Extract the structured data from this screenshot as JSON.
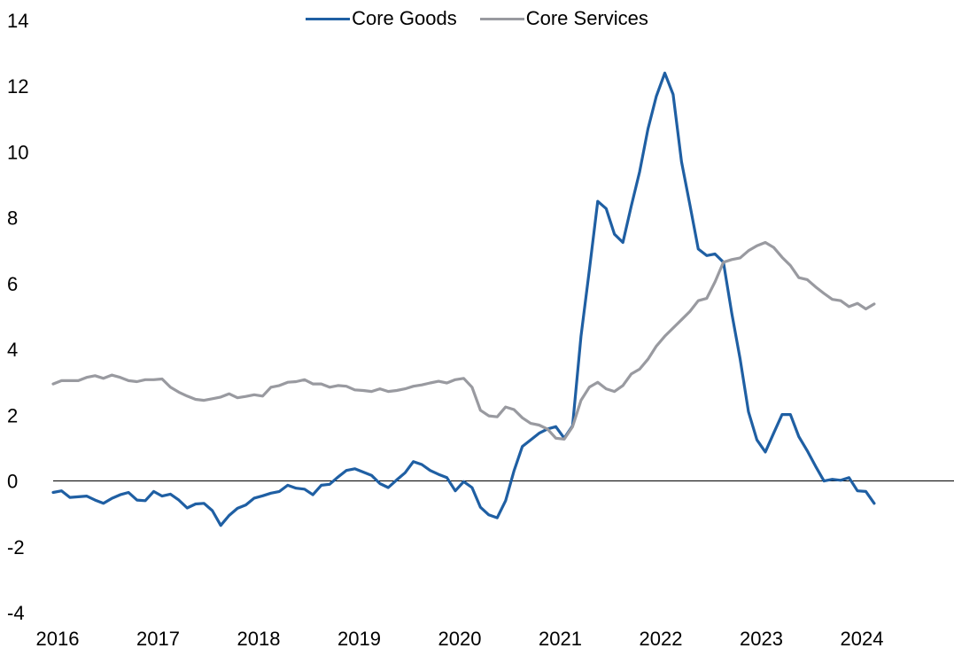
{
  "chart_data": {
    "type": "line",
    "title": "",
    "xlabel": "",
    "ylabel": "",
    "ylim": [
      -4,
      14
    ],
    "yticks": [
      -4,
      -2,
      0,
      2,
      4,
      6,
      8,
      10,
      12,
      14
    ],
    "ytick_labels": [
      "-4",
      "-2",
      "0",
      "2",
      "4",
      "6",
      "8",
      "10",
      "12",
      "14"
    ],
    "xlim": [
      "2016-01",
      "2024-12"
    ],
    "xtick_labels": [
      "2016",
      "2017",
      "2018",
      "2019",
      "2020",
      "2021",
      "2022",
      "2023",
      "2024"
    ],
    "legend": {
      "placement": "top-center"
    },
    "zero_line": true,
    "grid": false,
    "series": [
      {
        "name": "Core Goods",
        "color": "#1f5fa3",
        "points": [
          [
            "2016-01",
            -0.35
          ],
          [
            "2016-02",
            -0.3
          ],
          [
            "2016-03",
            -0.5
          ],
          [
            "2016-04",
            -0.48
          ],
          [
            "2016-05",
            -0.46
          ],
          [
            "2016-06",
            -0.58
          ],
          [
            "2016-07",
            -0.68
          ],
          [
            "2016-08",
            -0.53
          ],
          [
            "2016-09",
            -0.42
          ],
          [
            "2016-10",
            -0.35
          ],
          [
            "2016-11",
            -0.58
          ],
          [
            "2016-12",
            -0.6
          ],
          [
            "2017-01",
            -0.32
          ],
          [
            "2017-02",
            -0.46
          ],
          [
            "2017-03",
            -0.4
          ],
          [
            "2017-04",
            -0.58
          ],
          [
            "2017-05",
            -0.82
          ],
          [
            "2017-06",
            -0.7
          ],
          [
            "2017-07",
            -0.68
          ],
          [
            "2017-08",
            -0.9
          ],
          [
            "2017-09",
            -1.35
          ],
          [
            "2017-10",
            -1.05
          ],
          [
            "2017-11",
            -0.83
          ],
          [
            "2017-12",
            -0.73
          ],
          [
            "2018-01",
            -0.52
          ],
          [
            "2018-02",
            -0.45
          ],
          [
            "2018-03",
            -0.37
          ],
          [
            "2018-04",
            -0.32
          ],
          [
            "2018-05",
            -0.13
          ],
          [
            "2018-06",
            -0.22
          ],
          [
            "2018-07",
            -0.25
          ],
          [
            "2018-08",
            -0.42
          ],
          [
            "2018-09",
            -0.13
          ],
          [
            "2018-10",
            -0.1
          ],
          [
            "2018-11",
            0.12
          ],
          [
            "2018-12",
            0.32
          ],
          [
            "2019-01",
            0.37
          ],
          [
            "2019-02",
            0.27
          ],
          [
            "2019-03",
            0.17
          ],
          [
            "2019-04",
            -0.08
          ],
          [
            "2019-05",
            -0.2
          ],
          [
            "2019-06",
            0.03
          ],
          [
            "2019-07",
            0.25
          ],
          [
            "2019-08",
            0.59
          ],
          [
            "2019-09",
            0.5
          ],
          [
            "2019-10",
            0.32
          ],
          [
            "2019-11",
            0.2
          ],
          [
            "2019-12",
            0.1
          ],
          [
            "2020-01",
            -0.3
          ],
          [
            "2020-02",
            -0.02
          ],
          [
            "2020-03",
            -0.2
          ],
          [
            "2020-04",
            -0.8
          ],
          [
            "2020-05",
            -1.03
          ],
          [
            "2020-06",
            -1.12
          ],
          [
            "2020-07",
            -0.6
          ],
          [
            "2020-08",
            0.3
          ],
          [
            "2020-09",
            1.05
          ],
          [
            "2020-10",
            1.25
          ],
          [
            "2020-11",
            1.45
          ],
          [
            "2020-12",
            1.58
          ],
          [
            "2021-01",
            1.65
          ],
          [
            "2021-02",
            1.3
          ],
          [
            "2021-03",
            1.68
          ],
          [
            "2021-04",
            4.4
          ],
          [
            "2021-05",
            6.4
          ],
          [
            "2021-06",
            8.5
          ],
          [
            "2021-07",
            8.28
          ],
          [
            "2021-08",
            7.5
          ],
          [
            "2021-09",
            7.25
          ],
          [
            "2021-10",
            8.35
          ],
          [
            "2021-11",
            9.4
          ],
          [
            "2021-12",
            10.7
          ],
          [
            "2022-01",
            11.7
          ],
          [
            "2022-02",
            12.4
          ],
          [
            "2022-03",
            11.75
          ],
          [
            "2022-04",
            9.7
          ],
          [
            "2022-05",
            8.4
          ],
          [
            "2022-06",
            7.05
          ],
          [
            "2022-07",
            6.85
          ],
          [
            "2022-08",
            6.9
          ],
          [
            "2022-09",
            6.65
          ],
          [
            "2022-10",
            5.1
          ],
          [
            "2022-11",
            3.7
          ],
          [
            "2022-12",
            2.1
          ],
          [
            "2023-01",
            1.25
          ],
          [
            "2023-02",
            0.88
          ],
          [
            "2023-03",
            1.45
          ],
          [
            "2023-04",
            2.02
          ],
          [
            "2023-05",
            2.02
          ],
          [
            "2023-06",
            1.35
          ],
          [
            "2023-07",
            0.92
          ],
          [
            "2023-08",
            0.45
          ],
          [
            "2023-09",
            0.0
          ],
          [
            "2023-10",
            0.05
          ],
          [
            "2023-11",
            0.02
          ],
          [
            "2023-12",
            0.1
          ],
          [
            "2024-01",
            -0.3
          ],
          [
            "2024-02",
            -0.32
          ],
          [
            "2024-03",
            -0.68
          ]
        ]
      },
      {
        "name": "Core Services",
        "color": "#999aa0",
        "points": [
          [
            "2016-01",
            2.95
          ],
          [
            "2016-02",
            3.05
          ],
          [
            "2016-03",
            3.05
          ],
          [
            "2016-04",
            3.05
          ],
          [
            "2016-05",
            3.15
          ],
          [
            "2016-06",
            3.2
          ],
          [
            "2016-07",
            3.12
          ],
          [
            "2016-08",
            3.22
          ],
          [
            "2016-09",
            3.15
          ],
          [
            "2016-10",
            3.05
          ],
          [
            "2016-11",
            3.02
          ],
          [
            "2016-12",
            3.08
          ],
          [
            "2017-01",
            3.08
          ],
          [
            "2017-02",
            3.1
          ],
          [
            "2017-03",
            2.85
          ],
          [
            "2017-04",
            2.7
          ],
          [
            "2017-05",
            2.58
          ],
          [
            "2017-06",
            2.48
          ],
          [
            "2017-07",
            2.45
          ],
          [
            "2017-08",
            2.5
          ],
          [
            "2017-09",
            2.55
          ],
          [
            "2017-10",
            2.65
          ],
          [
            "2017-11",
            2.53
          ],
          [
            "2017-12",
            2.57
          ],
          [
            "2018-01",
            2.62
          ],
          [
            "2018-02",
            2.58
          ],
          [
            "2018-03",
            2.85
          ],
          [
            "2018-04",
            2.9
          ],
          [
            "2018-05",
            3.0
          ],
          [
            "2018-06",
            3.02
          ],
          [
            "2018-07",
            3.08
          ],
          [
            "2018-08",
            2.95
          ],
          [
            "2018-09",
            2.95
          ],
          [
            "2018-10",
            2.85
          ],
          [
            "2018-11",
            2.9
          ],
          [
            "2018-12",
            2.88
          ],
          [
            "2019-01",
            2.77
          ],
          [
            "2019-02",
            2.75
          ],
          [
            "2019-03",
            2.72
          ],
          [
            "2019-04",
            2.8
          ],
          [
            "2019-05",
            2.72
          ],
          [
            "2019-06",
            2.75
          ],
          [
            "2019-07",
            2.8
          ],
          [
            "2019-08",
            2.88
          ],
          [
            "2019-09",
            2.92
          ],
          [
            "2019-10",
            2.98
          ],
          [
            "2019-11",
            3.03
          ],
          [
            "2019-12",
            2.98
          ],
          [
            "2020-01",
            3.08
          ],
          [
            "2020-02",
            3.12
          ],
          [
            "2020-03",
            2.85
          ],
          [
            "2020-04",
            2.15
          ],
          [
            "2020-05",
            1.98
          ],
          [
            "2020-06",
            1.95
          ],
          [
            "2020-07",
            2.25
          ],
          [
            "2020-08",
            2.17
          ],
          [
            "2020-09",
            1.92
          ],
          [
            "2020-10",
            1.75
          ],
          [
            "2020-11",
            1.7
          ],
          [
            "2020-12",
            1.58
          ],
          [
            "2021-01",
            1.3
          ],
          [
            "2021-02",
            1.27
          ],
          [
            "2021-03",
            1.65
          ],
          [
            "2021-04",
            2.45
          ],
          [
            "2021-05",
            2.85
          ],
          [
            "2021-06",
            3.0
          ],
          [
            "2021-07",
            2.8
          ],
          [
            "2021-08",
            2.72
          ],
          [
            "2021-09",
            2.9
          ],
          [
            "2021-10",
            3.25
          ],
          [
            "2021-11",
            3.4
          ],
          [
            "2021-12",
            3.7
          ],
          [
            "2022-01",
            4.1
          ],
          [
            "2022-02",
            4.4
          ],
          [
            "2022-03",
            4.65
          ],
          [
            "2022-04",
            4.9
          ],
          [
            "2022-05",
            5.15
          ],
          [
            "2022-06",
            5.48
          ],
          [
            "2022-07",
            5.55
          ],
          [
            "2022-08",
            6.05
          ],
          [
            "2022-09",
            6.65
          ],
          [
            "2022-10",
            6.73
          ],
          [
            "2022-11",
            6.78
          ],
          [
            "2022-12",
            7.0
          ],
          [
            "2023-01",
            7.15
          ],
          [
            "2023-02",
            7.25
          ],
          [
            "2023-03",
            7.1
          ],
          [
            "2023-04",
            6.8
          ],
          [
            "2023-05",
            6.55
          ],
          [
            "2023-06",
            6.18
          ],
          [
            "2023-07",
            6.12
          ],
          [
            "2023-08",
            5.9
          ],
          [
            "2023-09",
            5.7
          ],
          [
            "2023-10",
            5.52
          ],
          [
            "2023-11",
            5.48
          ],
          [
            "2023-12",
            5.3
          ],
          [
            "2024-01",
            5.4
          ],
          [
            "2024-02",
            5.23
          ],
          [
            "2024-03",
            5.38
          ]
        ]
      }
    ]
  }
}
